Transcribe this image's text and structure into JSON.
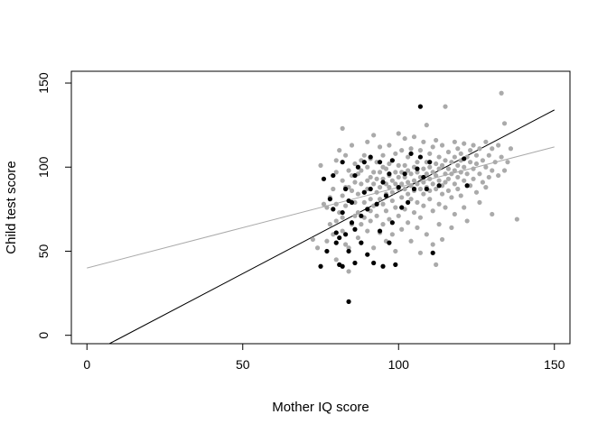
{
  "chart_data": {
    "type": "scatter",
    "title": "",
    "xlabel": "Mother IQ score",
    "ylabel": "Child test score",
    "xlim": [
      -5,
      155
    ],
    "ylim": [
      -5,
      157
    ],
    "xticks": [
      0,
      50,
      100,
      150
    ],
    "yticks": [
      0,
      50,
      100,
      150
    ],
    "grid": false,
    "legend": "none",
    "series": [
      {
        "color": "#aaaaaa",
        "points": [
          [
            72.5,
            57
          ],
          [
            74,
            52
          ],
          [
            75,
            101
          ],
          [
            76,
            78
          ],
          [
            77,
            76
          ],
          [
            77,
            56
          ],
          [
            78,
            82
          ],
          [
            78,
            66
          ],
          [
            79,
            87
          ],
          [
            79,
            60
          ],
          [
            80,
            97
          ],
          [
            80,
            78
          ],
          [
            80,
            104
          ],
          [
            80,
            68
          ],
          [
            80,
            45
          ],
          [
            81,
            110
          ],
          [
            81,
            73
          ],
          [
            82,
            123
          ],
          [
            82,
            92
          ],
          [
            82,
            83
          ],
          [
            82,
            70
          ],
          [
            82,
            62
          ],
          [
            83,
            54
          ],
          [
            83,
            107
          ],
          [
            83,
            88
          ],
          [
            83,
            77
          ],
          [
            84,
            88
          ],
          [
            84,
            98
          ],
          [
            84,
            38
          ],
          [
            84,
            52
          ],
          [
            85,
            95
          ],
          [
            85,
            86
          ],
          [
            85,
            113
          ],
          [
            85,
            66
          ],
          [
            86,
            71
          ],
          [
            86,
            91
          ],
          [
            86,
            102
          ],
          [
            86,
            79
          ],
          [
            87,
            96
          ],
          [
            87,
            58
          ],
          [
            87,
            84
          ],
          [
            87,
            73
          ],
          [
            88,
            90
          ],
          [
            88,
            98
          ],
          [
            88,
            104
          ],
          [
            88,
            66
          ],
          [
            88,
            55
          ],
          [
            89,
            107
          ],
          [
            89,
            85
          ],
          [
            89,
            79
          ],
          [
            89,
            70
          ],
          [
            90,
            92
          ],
          [
            90,
            100
          ],
          [
            90,
            115
          ],
          [
            90,
            62
          ],
          [
            90,
            87
          ],
          [
            91,
            94
          ],
          [
            91,
            81
          ],
          [
            91,
            74
          ],
          [
            91,
            68
          ],
          [
            91,
            105
          ],
          [
            92,
            90
          ],
          [
            92,
            97
          ],
          [
            92,
            77
          ],
          [
            92,
            119
          ],
          [
            92,
            52
          ],
          [
            93,
            103
          ],
          [
            93,
            85
          ],
          [
            93,
            93
          ],
          [
            93,
            71
          ],
          [
            94,
            88
          ],
          [
            94,
            97
          ],
          [
            94,
            112
          ],
          [
            94,
            61
          ],
          [
            94,
            81
          ],
          [
            95,
            93
          ],
          [
            95,
            100
          ],
          [
            95,
            78
          ],
          [
            95,
            107
          ],
          [
            95,
            66
          ],
          [
            96,
            90
          ],
          [
            96,
            84
          ],
          [
            96,
            99
          ],
          [
            96,
            56
          ],
          [
            96,
            74
          ],
          [
            97,
            95
          ],
          [
            97,
            102
          ],
          [
            97,
            88
          ],
          [
            97,
            113
          ],
          [
            97,
            69
          ],
          [
            98,
            92
          ],
          [
            98,
            85
          ],
          [
            98,
            80
          ],
          [
            98,
            104
          ],
          [
            98,
            60
          ],
          [
            99,
            97
          ],
          [
            99,
            90
          ],
          [
            99,
            108
          ],
          [
            99,
            76
          ],
          [
            99,
            50
          ],
          [
            100,
            101
          ],
          [
            100,
            94
          ],
          [
            100,
            87
          ],
          [
            100,
            120
          ],
          [
            100,
            71
          ],
          [
            101,
            97
          ],
          [
            101,
            90
          ],
          [
            101,
            82
          ],
          [
            101,
            110
          ],
          [
            101,
            63
          ],
          [
            102,
            94
          ],
          [
            102,
            101
          ],
          [
            102,
            87
          ],
          [
            102,
            117
          ],
          [
            102,
            75
          ],
          [
            103,
            98
          ],
          [
            103,
            91
          ],
          [
            103,
            84
          ],
          [
            103,
            106
          ],
          [
            103,
            67
          ],
          [
            104,
            96
          ],
          [
            104,
            89
          ],
          [
            104,
            81
          ],
          [
            104,
            111
          ],
          [
            104,
            56
          ],
          [
            105,
            100
          ],
          [
            105,
            92
          ],
          [
            105,
            86
          ],
          [
            105,
            73
          ],
          [
            105,
            118
          ],
          [
            106,
            97
          ],
          [
            106,
            90
          ],
          [
            106,
            103
          ],
          [
            106,
            79
          ],
          [
            106,
            64
          ],
          [
            107,
            94
          ],
          [
            107,
            87
          ],
          [
            107,
            110
          ],
          [
            107,
            70
          ],
          [
            107,
            49
          ],
          [
            108,
            99
          ],
          [
            108,
            91
          ],
          [
            108,
            84
          ],
          [
            108,
            115
          ],
          [
            108,
            77
          ],
          [
            109,
            96
          ],
          [
            109,
            103
          ],
          [
            109,
            88
          ],
          [
            109,
            125
          ],
          [
            109,
            60
          ],
          [
            110,
            93
          ],
          [
            110,
            100
          ],
          [
            110,
            86
          ],
          [
            110,
            81
          ],
          [
            110,
            108
          ],
          [
            111,
            97
          ],
          [
            111,
            90
          ],
          [
            111,
            112
          ],
          [
            111,
            74
          ],
          [
            111,
            54
          ],
          [
            112,
            95
          ],
          [
            112,
            102
          ],
          [
            112,
            87
          ],
          [
            112,
            116
          ],
          [
            112,
            42
          ],
          [
            113,
            92
          ],
          [
            113,
            99
          ],
          [
            113,
            106
          ],
          [
            113,
            78
          ],
          [
            113,
            66
          ],
          [
            114,
            101
          ],
          [
            114,
            89
          ],
          [
            114,
            84
          ],
          [
            114,
            113
          ],
          [
            114,
            57
          ],
          [
            115,
            96
          ],
          [
            115,
            104
          ],
          [
            115,
            91
          ],
          [
            115,
            76
          ],
          [
            115,
            136
          ],
          [
            116,
            99
          ],
          [
            116,
            93
          ],
          [
            116,
            109
          ],
          [
            116,
            86
          ],
          [
            117,
            103
          ],
          [
            117,
            96
          ],
          [
            117,
            82
          ],
          [
            117,
            64
          ],
          [
            118,
            106
          ],
          [
            118,
            98
          ],
          [
            118,
            90
          ],
          [
            118,
            115
          ],
          [
            118,
            72
          ],
          [
            119,
            101
          ],
          [
            119,
            94
          ],
          [
            119,
            111
          ],
          [
            119,
            87
          ],
          [
            120,
            104
          ],
          [
            120,
            97
          ],
          [
            120,
            83
          ],
          [
            120,
            108
          ],
          [
            121,
            100
          ],
          [
            121,
            92
          ],
          [
            121,
            76
          ],
          [
            121,
            114
          ],
          [
            122,
            106
          ],
          [
            122,
            96
          ],
          [
            122,
            68
          ],
          [
            123,
            103
          ],
          [
            123,
            110
          ],
          [
            123,
            89
          ],
          [
            124,
            99
          ],
          [
            124,
            113
          ],
          [
            124,
            93
          ],
          [
            125,
            107
          ],
          [
            125,
            85
          ],
          [
            125,
            102
          ],
          [
            126,
            96
          ],
          [
            126,
            111
          ],
          [
            126,
            79
          ],
          [
            127,
            104
          ],
          [
            127,
            91
          ],
          [
            128,
            115
          ],
          [
            128,
            100
          ],
          [
            128,
            88
          ],
          [
            129,
            107
          ],
          [
            129,
            94
          ],
          [
            130,
            111
          ],
          [
            130,
            98
          ],
          [
            130,
            72
          ],
          [
            131,
            103
          ],
          [
            132,
            95
          ],
          [
            132,
            113
          ],
          [
            133,
            144
          ],
          [
            133,
            106
          ],
          [
            134,
            126
          ],
          [
            134,
            98
          ],
          [
            135,
            103
          ],
          [
            136,
            111
          ],
          [
            138,
            69
          ]
        ]
      },
      {
        "color": "#000000",
        "points": [
          [
            75,
            41
          ],
          [
            76,
            93
          ],
          [
            77,
            50
          ],
          [
            78,
            81
          ],
          [
            79,
            75
          ],
          [
            79,
            95
          ],
          [
            80,
            61
          ],
          [
            80,
            55
          ],
          [
            81,
            58
          ],
          [
            81,
            42
          ],
          [
            82,
            41
          ],
          [
            82,
            73
          ],
          [
            82,
            103
          ],
          [
            83,
            60
          ],
          [
            83,
            87
          ],
          [
            84,
            80
          ],
          [
            84,
            50
          ],
          [
            84,
            20
          ],
          [
            85,
            79
          ],
          [
            85,
            67
          ],
          [
            86,
            95
          ],
          [
            86,
            63
          ],
          [
            86,
            43
          ],
          [
            87,
            100
          ],
          [
            88,
            71
          ],
          [
            88,
            55
          ],
          [
            89,
            103
          ],
          [
            89,
            85
          ],
          [
            90,
            75
          ],
          [
            90,
            48
          ],
          [
            91,
            106
          ],
          [
            91,
            87
          ],
          [
            92,
            43
          ],
          [
            93,
            78
          ],
          [
            94,
            103
          ],
          [
            94,
            62
          ],
          [
            95,
            91
          ],
          [
            95,
            41
          ],
          [
            96,
            83
          ],
          [
            97,
            96
          ],
          [
            97,
            55
          ],
          [
            98,
            104
          ],
          [
            98,
            67
          ],
          [
            99,
            42
          ],
          [
            100,
            88
          ],
          [
            101,
            76
          ],
          [
            102,
            96
          ],
          [
            103,
            79
          ],
          [
            104,
            108
          ],
          [
            105,
            87
          ],
          [
            106,
            99
          ],
          [
            107,
            106
          ],
          [
            107,
            136
          ],
          [
            108,
            94
          ],
          [
            109,
            87
          ],
          [
            110,
            103
          ],
          [
            111,
            49
          ],
          [
            113,
            89
          ],
          [
            121,
            105
          ],
          [
            122,
            89
          ]
        ]
      }
    ],
    "lines": [
      {
        "color": "#aaaaaa",
        "x": [
          0,
          150
        ],
        "y": [
          40,
          112
        ]
      },
      {
        "color": "#000000",
        "x": [
          0,
          150
        ],
        "y": [
          -12,
          134
        ]
      }
    ]
  }
}
